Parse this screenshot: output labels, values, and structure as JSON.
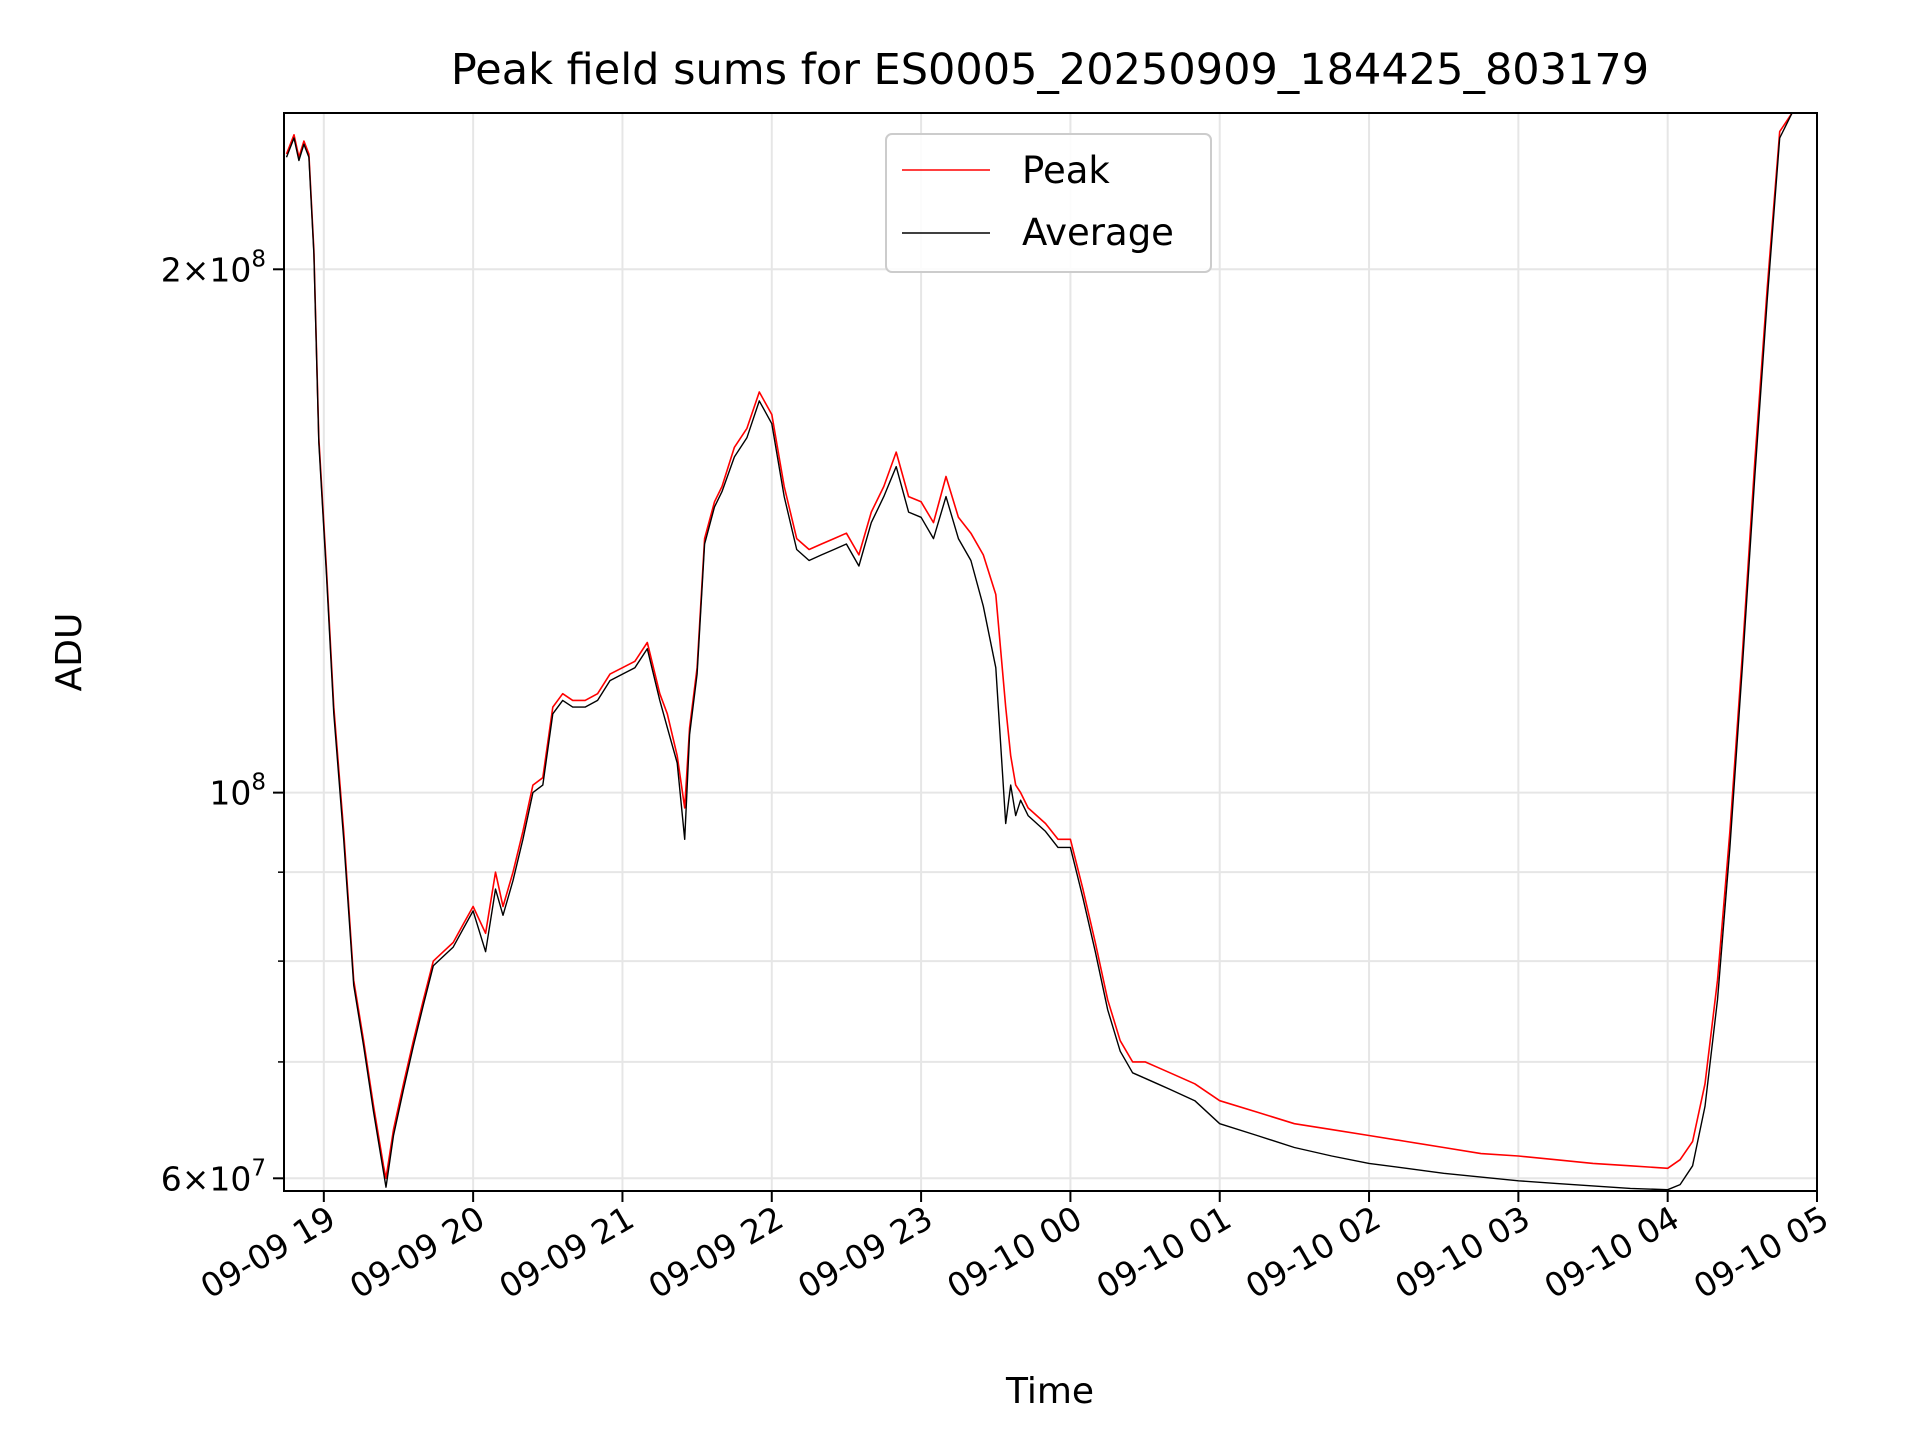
{
  "chart_data": {
    "type": "line",
    "title": "Peak field sums for ES0005_20250909_184425_803179",
    "xlabel": "Time",
    "ylabel": "ADU",
    "xscale": "time",
    "yscale": "log",
    "xlim": [
      "2025-09-09 18:44",
      "2025-09-10 05:00"
    ],
    "ylim": [
      59000000,
      246000000
    ],
    "grid": true,
    "legend": "top-center",
    "x_ticks": [
      "09-09 19",
      "09-09 20",
      "09-09 21",
      "09-09 22",
      "09-09 23",
      "09-10 00",
      "09-10 01",
      "09-10 02",
      "09-10 03",
      "09-10 04",
      "09-10 05"
    ],
    "x_tick_values": [
      "2025-09-09 19:00",
      "2025-09-09 20:00",
      "2025-09-09 21:00",
      "2025-09-09 22:00",
      "2025-09-09 23:00",
      "2025-09-10 00:00",
      "2025-09-10 01:00",
      "2025-09-10 02:00",
      "2025-09-10 03:00",
      "2025-09-10 04:00",
      "2025-09-10 05:00"
    ],
    "y_ticks_major": [
      {
        "value": 60000000,
        "base": "6×10",
        "exp": "7"
      },
      {
        "value": 100000000,
        "base": "10",
        "exp": "8"
      },
      {
        "value": 200000000,
        "base": "2×10",
        "exp": "8"
      }
    ],
    "y_ticks_minor": [
      70000000,
      80000000,
      90000000
    ],
    "series": [
      {
        "name": "Peak",
        "color": "#ff0000",
        "x": [
          "2025-09-09 18:45",
          "2025-09-09 18:48",
          "2025-09-09 18:50",
          "2025-09-09 18:52",
          "2025-09-09 18:54",
          "2025-09-09 18:56",
          "2025-09-09 18:58",
          "2025-09-09 19:01",
          "2025-09-09 19:04",
          "2025-09-09 19:08",
          "2025-09-09 19:12",
          "2025-09-09 19:16",
          "2025-09-09 19:20",
          "2025-09-09 19:24",
          "2025-09-09 19:25",
          "2025-09-09 19:28",
          "2025-09-09 19:32",
          "2025-09-09 19:36",
          "2025-09-09 19:40",
          "2025-09-09 19:44",
          "2025-09-09 19:48",
          "2025-09-09 19:52",
          "2025-09-09 19:56",
          "2025-09-09 20:00",
          "2025-09-09 20:05",
          "2025-09-09 20:09",
          "2025-09-09 20:12",
          "2025-09-09 20:16",
          "2025-09-09 20:20",
          "2025-09-09 20:24",
          "2025-09-09 20:28",
          "2025-09-09 20:32",
          "2025-09-09 20:36",
          "2025-09-09 20:40",
          "2025-09-09 20:45",
          "2025-09-09 20:50",
          "2025-09-09 20:55",
          "2025-09-09 21:00",
          "2025-09-09 21:05",
          "2025-09-09 21:10",
          "2025-09-09 21:15",
          "2025-09-09 21:18",
          "2025-09-09 21:22",
          "2025-09-09 21:25",
          "2025-09-09 21:27",
          "2025-09-09 21:30",
          "2025-09-09 21:33",
          "2025-09-09 21:37",
          "2025-09-09 21:40",
          "2025-09-09 21:45",
          "2025-09-09 21:50",
          "2025-09-09 21:55",
          "2025-09-09 22:00",
          "2025-09-09 22:05",
          "2025-09-09 22:10",
          "2025-09-09 22:15",
          "2025-09-09 22:20",
          "2025-09-09 22:25",
          "2025-09-09 22:30",
          "2025-09-09 22:35",
          "2025-09-09 22:40",
          "2025-09-09 22:45",
          "2025-09-09 22:50",
          "2025-09-09 22:55",
          "2025-09-09 23:00",
          "2025-09-09 23:05",
          "2025-09-09 23:10",
          "2025-09-09 23:15",
          "2025-09-09 23:20",
          "2025-09-09 23:25",
          "2025-09-09 23:30",
          "2025-09-09 23:34",
          "2025-09-09 23:36",
          "2025-09-09 23:38",
          "2025-09-09 23:40",
          "2025-09-09 23:43",
          "2025-09-09 23:50",
          "2025-09-09 23:55",
          "2025-09-10 00:00",
          "2025-09-10 00:05",
          "2025-09-10 00:10",
          "2025-09-10 00:15",
          "2025-09-10 00:20",
          "2025-09-10 00:25",
          "2025-09-10 00:30",
          "2025-09-10 00:35",
          "2025-09-10 00:40",
          "2025-09-10 00:50",
          "2025-09-10 01:00",
          "2025-09-10 01:15",
          "2025-09-10 01:30",
          "2025-09-10 01:45",
          "2025-09-10 02:00",
          "2025-09-10 02:15",
          "2025-09-10 02:30",
          "2025-09-10 02:45",
          "2025-09-10 03:00",
          "2025-09-10 03:15",
          "2025-09-10 03:30",
          "2025-09-10 03:45",
          "2025-09-10 04:00",
          "2025-09-10 04:05",
          "2025-09-10 04:10",
          "2025-09-10 04:15",
          "2025-09-10 04:20",
          "2025-09-10 04:25",
          "2025-09-10 04:30",
          "2025-09-10 04:35",
          "2025-09-10 04:40",
          "2025-09-10 04:45",
          "2025-09-10 04:50"
        ],
        "y": [
          233000000,
          239000000,
          232000000,
          237000000,
          233000000,
          205000000,
          160000000,
          135000000,
          112000000,
          95000000,
          78000000,
          72000000,
          66000000,
          61000000,
          60000000,
          64000000,
          68000000,
          72000000,
          76000000,
          80000000,
          81000000,
          82000000,
          84000000,
          86000000,
          83000000,
          90000000,
          86000000,
          90000000,
          95000000,
          101000000,
          102000000,
          112000000,
          114000000,
          113000000,
          113000000,
          114000000,
          117000000,
          118000000,
          119000000,
          122000000,
          114000000,
          111000000,
          105000000,
          98000000,
          109000000,
          118000000,
          140000000,
          147000000,
          150000000,
          158000000,
          162000000,
          170000000,
          165000000,
          150000000,
          140000000,
          138000000,
          139000000,
          140000000,
          141000000,
          137000000,
          145000000,
          150000000,
          157000000,
          148000000,
          147000000,
          143000000,
          152000000,
          144000000,
          141000000,
          137000000,
          130000000,
          112000000,
          105000000,
          101000000,
          100000000,
          98000000,
          96000000,
          94000000,
          94000000,
          88000000,
          82000000,
          76000000,
          72000000,
          70000000,
          70000000,
          69500000,
          69000000,
          68000000,
          66500000,
          65500000,
          64500000,
          64000000,
          63500000,
          63000000,
          62500000,
          62000000,
          61800000,
          61500000,
          61200000,
          61000000,
          60800000,
          61500000,
          63000000,
          68000000,
          78000000,
          95000000,
          120000000,
          155000000,
          195000000,
          240000000,
          246000000
        ]
      },
      {
        "name": "Average",
        "color": "#000000",
        "x": [
          "2025-09-09 18:45",
          "2025-09-09 18:48",
          "2025-09-09 18:50",
          "2025-09-09 18:52",
          "2025-09-09 18:54",
          "2025-09-09 18:56",
          "2025-09-09 18:58",
          "2025-09-09 19:01",
          "2025-09-09 19:04",
          "2025-09-09 19:08",
          "2025-09-09 19:12",
          "2025-09-09 19:16",
          "2025-09-09 19:20",
          "2025-09-09 19:24",
          "2025-09-09 19:25",
          "2025-09-09 19:28",
          "2025-09-09 19:32",
          "2025-09-09 19:36",
          "2025-09-09 19:40",
          "2025-09-09 19:44",
          "2025-09-09 19:48",
          "2025-09-09 19:52",
          "2025-09-09 19:56",
          "2025-09-09 20:00",
          "2025-09-09 20:05",
          "2025-09-09 20:09",
          "2025-09-09 20:12",
          "2025-09-09 20:16",
          "2025-09-09 20:20",
          "2025-09-09 20:24",
          "2025-09-09 20:28",
          "2025-09-09 20:32",
          "2025-09-09 20:36",
          "2025-09-09 20:40",
          "2025-09-09 20:45",
          "2025-09-09 20:50",
          "2025-09-09 20:55",
          "2025-09-09 21:00",
          "2025-09-09 21:05",
          "2025-09-09 21:10",
          "2025-09-09 21:15",
          "2025-09-09 21:18",
          "2025-09-09 21:22",
          "2025-09-09 21:25",
          "2025-09-09 21:27",
          "2025-09-09 21:30",
          "2025-09-09 21:33",
          "2025-09-09 21:37",
          "2025-09-09 21:40",
          "2025-09-09 21:45",
          "2025-09-09 21:50",
          "2025-09-09 21:55",
          "2025-09-09 22:00",
          "2025-09-09 22:05",
          "2025-09-09 22:10",
          "2025-09-09 22:15",
          "2025-09-09 22:20",
          "2025-09-09 22:25",
          "2025-09-09 22:30",
          "2025-09-09 22:35",
          "2025-09-09 22:40",
          "2025-09-09 22:45",
          "2025-09-09 22:50",
          "2025-09-09 22:55",
          "2025-09-09 23:00",
          "2025-09-09 23:05",
          "2025-09-09 23:10",
          "2025-09-09 23:15",
          "2025-09-09 23:20",
          "2025-09-09 23:25",
          "2025-09-09 23:30",
          "2025-09-09 23:34",
          "2025-09-09 23:36",
          "2025-09-09 23:38",
          "2025-09-09 23:40",
          "2025-09-09 23:43",
          "2025-09-09 23:50",
          "2025-09-09 23:55",
          "2025-09-10 00:00",
          "2025-09-10 00:05",
          "2025-09-10 00:10",
          "2025-09-10 00:15",
          "2025-09-10 00:20",
          "2025-09-10 00:25",
          "2025-09-10 00:30",
          "2025-09-10 00:35",
          "2025-09-10 00:40",
          "2025-09-10 00:50",
          "2025-09-10 01:00",
          "2025-09-10 01:15",
          "2025-09-10 01:30",
          "2025-09-10 01:45",
          "2025-09-10 02:00",
          "2025-09-10 02:15",
          "2025-09-10 02:30",
          "2025-09-10 02:45",
          "2025-09-10 03:00",
          "2025-09-10 03:15",
          "2025-09-10 03:30",
          "2025-09-10 03:45",
          "2025-09-10 04:00",
          "2025-09-10 04:05",
          "2025-09-10 04:10",
          "2025-09-10 04:15",
          "2025-09-10 04:20",
          "2025-09-10 04:25",
          "2025-09-10 04:30",
          "2025-09-10 04:35",
          "2025-09-10 04:40",
          "2025-09-10 04:45",
          "2025-09-10 04:50"
        ],
        "y": [
          232000000,
          238000000,
          231000000,
          236000000,
          232000000,
          204000000,
          159000000,
          134000000,
          111000000,
          94000000,
          77500000,
          71500000,
          65500000,
          60500000,
          59300000,
          63500000,
          67500000,
          71500000,
          75500000,
          79500000,
          80500000,
          81500000,
          83500000,
          85500000,
          81000000,
          88000000,
          85000000,
          89000000,
          94000000,
          100000000,
          101000000,
          111000000,
          113000000,
          112000000,
          112000000,
          113000000,
          116000000,
          117000000,
          118000000,
          121000000,
          113000000,
          109000000,
          104000000,
          94000000,
          108000000,
          117000000,
          139000000,
          146000000,
          149000000,
          156000000,
          160000000,
          168000000,
          163000000,
          148000000,
          138000000,
          136000000,
          137000000,
          138000000,
          139000000,
          135000000,
          143000000,
          148000000,
          154000000,
          145000000,
          144000000,
          140000000,
          148000000,
          140000000,
          136000000,
          128000000,
          118000000,
          96000000,
          101000000,
          97000000,
          99000000,
          97000000,
          95000000,
          93000000,
          93000000,
          87000000,
          81000000,
          75000000,
          71000000,
          69000000,
          68500000,
          68000000,
          67500000,
          66500000,
          64500000,
          63500000,
          62500000,
          61800000,
          61200000,
          60800000,
          60400000,
          60100000,
          59800000,
          59600000,
          59400000,
          59200000,
          59100000,
          59500000,
          61000000,
          66000000,
          76000000,
          93000000,
          118000000,
          152000000,
          192000000,
          238000000,
          246000000
        ]
      }
    ]
  }
}
